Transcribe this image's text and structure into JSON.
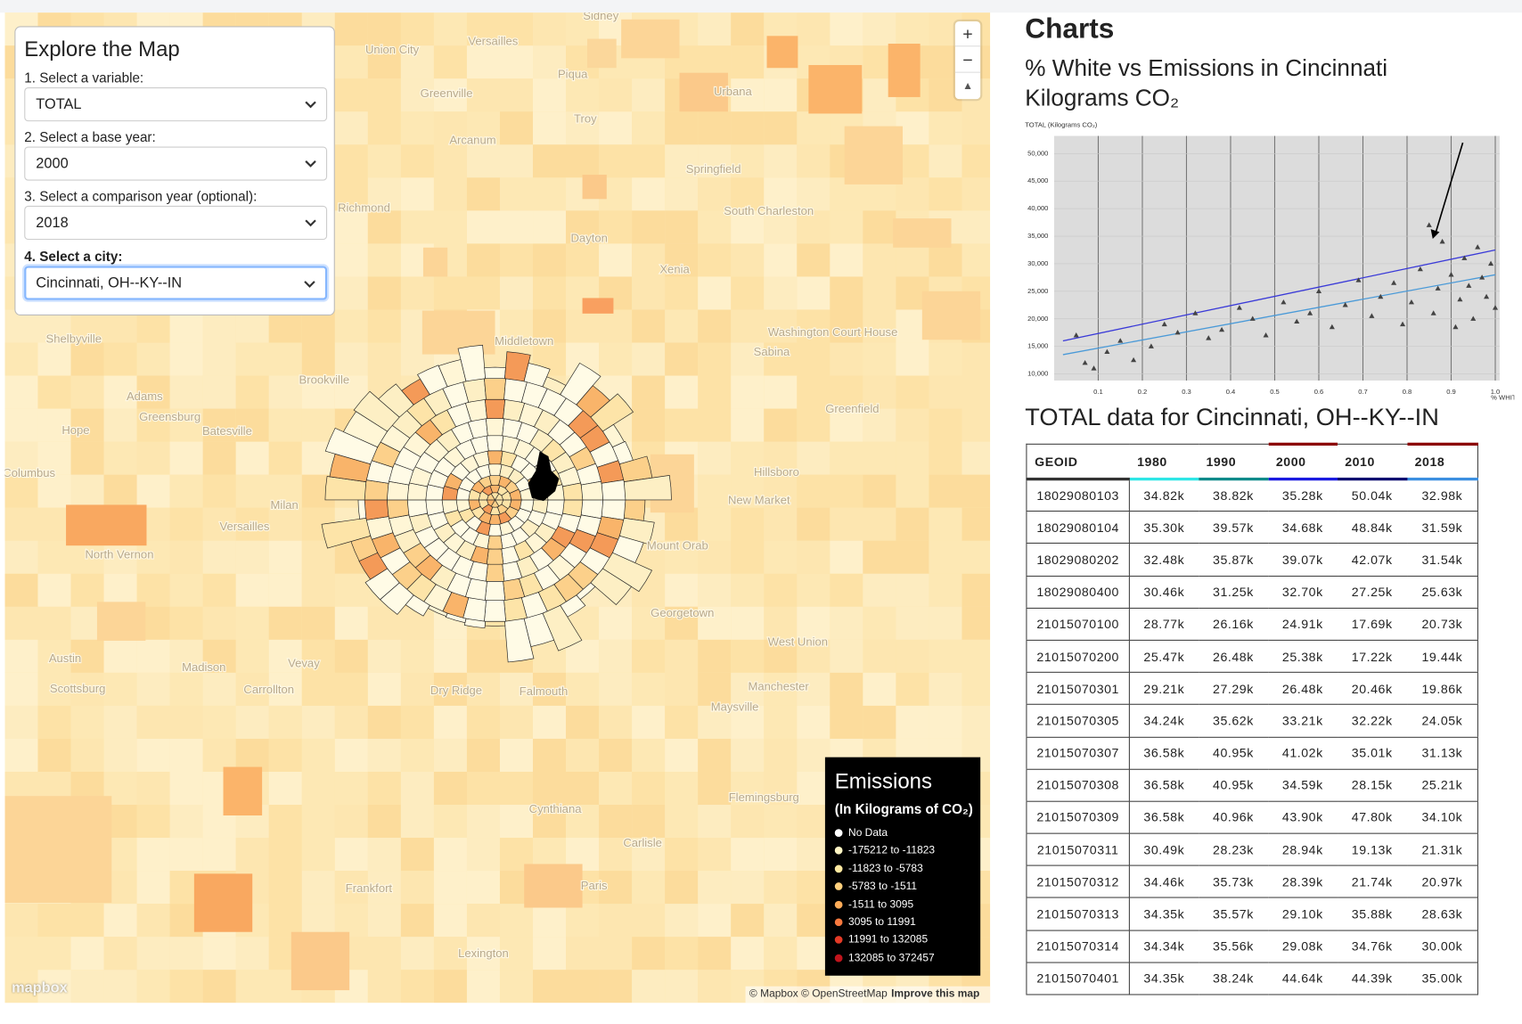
{
  "controls": {
    "title": "Explore the Map",
    "fields": [
      {
        "label": "1. Select a variable:",
        "value": "TOTAL"
      },
      {
        "label": "2. Select a base year:",
        "value": "2000"
      },
      {
        "label": "3. Select a comparison year (optional):",
        "value": "2018"
      },
      {
        "label": "4. Select a city:",
        "value": "Cincinnati, OH--KY--IN"
      }
    ]
  },
  "map": {
    "place_labels": [
      "Sidney",
      "Union City",
      "Versailles",
      "Piqua",
      "Greenville",
      "Troy",
      "Urbana",
      "Arcanum",
      "Springfield",
      "Dayton",
      "Richmond",
      "Xenia",
      "South Charleston",
      "Middletown",
      "Washington Court House",
      "Sabina",
      "Greenfield",
      "Hillsboro",
      "New Market",
      "Mount Orab",
      "Georgetown",
      "West Union",
      "Manchester",
      "Maysville",
      "Flemingsburg",
      "Cynthiana",
      "Carlisle",
      "Paris",
      "Frankfort",
      "Lexington",
      "Madison",
      "Carrollton",
      "Vevay",
      "Dry Ridge",
      "Falmouth",
      "Scottsburg",
      "Austin",
      "North Vernon",
      "Versailles",
      "Milan",
      "Batesville",
      "Brookville",
      "Greensburg",
      "Adams",
      "Hope",
      "Shelbyville",
      "Columbus"
    ],
    "zoom": {
      "in": "+",
      "out": "−",
      "reset": "▲"
    },
    "legend": {
      "title": "Emissions",
      "subtitle": "(In Kilograms of CO₂)",
      "items": [
        {
          "label": "No Data",
          "color": "#ffffff"
        },
        {
          "label": "-175212 to -11823",
          "color": "#fff6c4"
        },
        {
          "label": "-11823 to -5783",
          "color": "#fee9a0"
        },
        {
          "label": "-5783 to -1511",
          "color": "#fed07c"
        },
        {
          "label": "-1511 to 3095",
          "color": "#fdac58"
        },
        {
          "label": "3095 to 11991",
          "color": "#f8793e"
        },
        {
          "label": "11991 to 132085",
          "color": "#e43a26"
        },
        {
          "label": "132085 to 372457",
          "color": "#c0141c"
        }
      ]
    },
    "attribution": "© Mapbox © OpenStreetMap",
    "improve": "Improve this map",
    "logo": "mapbox"
  },
  "charts_heading": "Charts",
  "chart_data": {
    "type": "scatter",
    "title": "% White vs Emissions in Cincinnati",
    "subtitle": "Kilograms CO₂",
    "y_label": "TOTAL (Kilograms CO₂)",
    "x_label": "% WHITE",
    "xlim": [
      0,
      1.01
    ],
    "ylim": [
      8800,
      53200
    ],
    "xticks": [
      0.1,
      0.2,
      0.3,
      0.4,
      0.5,
      0.6,
      0.7,
      0.8,
      0.9,
      {
        "value": 1,
        "label": "1.0"
      }
    ],
    "yticks": [
      {
        "value": 10000,
        "label": "10,000"
      },
      {
        "value": 15000,
        "label": "15,000"
      },
      {
        "value": 20000,
        "label": "20,000"
      },
      {
        "value": 25000,
        "label": "25,000"
      },
      {
        "value": 30000,
        "label": "30,000"
      },
      {
        "value": 35000,
        "label": "35,000"
      },
      {
        "value": 40000,
        "label": "40,000"
      },
      {
        "value": 45000,
        "label": "45,000"
      },
      {
        "value": 50000,
        "label": "50,000"
      }
    ],
    "grid": true,
    "color": "#444444",
    "x": [
      0.05,
      0.07,
      0.09,
      0.12,
      0.15,
      0.18,
      0.22,
      0.25,
      0.28,
      0.32,
      0.35,
      0.38,
      0.42,
      0.45,
      0.48,
      0.52,
      0.55,
      0.58,
      0.6,
      0.63,
      0.66,
      0.69,
      0.72,
      0.74,
      0.77,
      0.79,
      0.81,
      0.83,
      0.85,
      0.86,
      0.87,
      0.88,
      0.9,
      0.91,
      0.92,
      0.93,
      0.94,
      0.95,
      0.96,
      0.97,
      0.98,
      0.99,
      1.0
    ],
    "values": [
      17000,
      12000,
      11000,
      14000,
      16000,
      12500,
      15000,
      19000,
      17500,
      21000,
      16500,
      18000,
      22000,
      20000,
      17000,
      23000,
      19500,
      21000,
      25000,
      18500,
      22500,
      27000,
      20500,
      24000,
      26500,
      19000,
      23000,
      29000,
      37000,
      21000,
      25500,
      34000,
      28000,
      18500,
      23500,
      31000,
      26000,
      20000,
      33000,
      27500,
      24000,
      30000,
      22000
    ],
    "trend_lines": [
      {
        "color": "#3a3ad8",
        "x": [
          0.02,
          1.0
        ],
        "y": [
          16000,
          32500
        ]
      },
      {
        "color": "#4a9ad8",
        "x": [
          0.02,
          1.0
        ],
        "y": [
          13500,
          28000
        ]
      }
    ]
  },
  "table": {
    "title": "TOTAL data for Cincinnati, OH--KY--IN",
    "columns": [
      "GEOID",
      "1980",
      "1990",
      "2000",
      "2010",
      "2018"
    ],
    "rows": [
      [
        "18029080103",
        "34.82k",
        "38.82k",
        "35.28k",
        "50.04k",
        "32.98k"
      ],
      [
        "18029080104",
        "35.30k",
        "39.57k",
        "34.68k",
        "48.84k",
        "31.59k"
      ],
      [
        "18029080202",
        "32.48k",
        "35.87k",
        "39.07k",
        "42.07k",
        "31.54k"
      ],
      [
        "18029080400",
        "30.46k",
        "31.25k",
        "32.70k",
        "27.25k",
        "25.63k"
      ],
      [
        "21015070100",
        "28.77k",
        "26.16k",
        "24.91k",
        "17.69k",
        "20.73k"
      ],
      [
        "21015070200",
        "25.47k",
        "26.48k",
        "25.38k",
        "17.22k",
        "19.44k"
      ],
      [
        "21015070301",
        "29.21k",
        "27.29k",
        "26.48k",
        "20.46k",
        "19.86k"
      ],
      [
        "21015070305",
        "34.24k",
        "35.62k",
        "33.21k",
        "32.22k",
        "24.05k"
      ],
      [
        "21015070307",
        "36.58k",
        "40.95k",
        "41.02k",
        "35.01k",
        "31.13k"
      ],
      [
        "21015070308",
        "36.58k",
        "40.95k",
        "34.59k",
        "28.15k",
        "25.21k"
      ],
      [
        "21015070309",
        "36.58k",
        "40.96k",
        "43.90k",
        "47.80k",
        "34.10k"
      ],
      [
        "21015070311",
        "30.49k",
        "28.23k",
        "28.94k",
        "19.13k",
        "21.31k"
      ],
      [
        "21015070312",
        "34.46k",
        "35.73k",
        "28.39k",
        "21.74k",
        "20.97k"
      ],
      [
        "21015070313",
        "34.35k",
        "35.57k",
        "29.10k",
        "35.88k",
        "28.63k"
      ],
      [
        "21015070314",
        "34.34k",
        "35.56k",
        "29.08k",
        "34.76k",
        "30.00k"
      ],
      [
        "21015070401",
        "34.35k",
        "38.24k",
        "44.64k",
        "44.39k",
        "35.00k"
      ]
    ]
  }
}
